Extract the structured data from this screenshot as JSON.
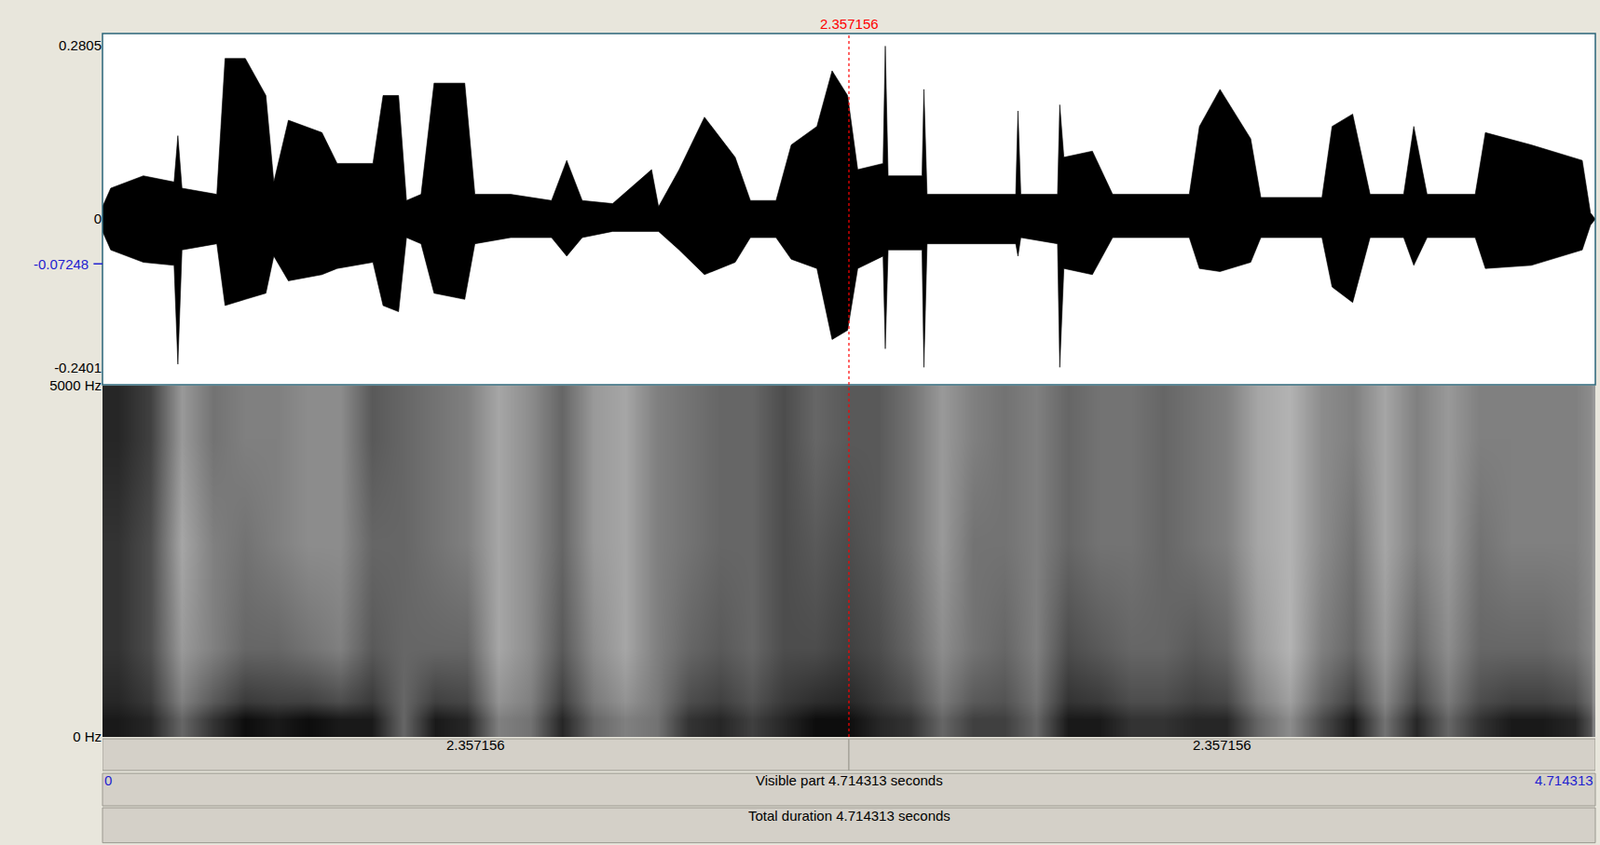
{
  "chart_data": [
    {
      "type": "waveform",
      "x": [
        0,
        0.026,
        0.129,
        0.226,
        0.238,
        0.251,
        0.361,
        0.387,
        0.451,
        0.516,
        0.541,
        0.587,
        0.693,
        0.741,
        0.854,
        0.886,
        0.935,
        0.96,
        1.006,
        1.047,
        1.144,
        1.176,
        1.289,
        1.418,
        1.466,
        1.515,
        1.611,
        1.734,
        1.756,
        1.821,
        1.901,
        1.998,
        2.046,
        2.127,
        2.175,
        2.256,
        2.304,
        2.353,
        2.385,
        2.465,
        2.472,
        2.481,
        2.588,
        2.594,
        2.604,
        2.884,
        2.891,
        2.9,
        3.016,
        3.023,
        3.036,
        3.126,
        3.19,
        3.432,
        3.464,
        3.529,
        3.626,
        3.658,
        3.851,
        3.883,
        3.948,
        4.003,
        4.109,
        4.141,
        4.183,
        4.335,
        4.367,
        4.512,
        4.673,
        4.699,
        4.714313
      ],
      "upper": [
        0.02,
        0.05,
        0.07,
        0.06,
        0.135,
        0.05,
        0.04,
        0.26,
        0.26,
        0.2,
        0.06,
        0.16,
        0.14,
        0.09,
        0.09,
        0.2,
        0.2,
        0.03,
        0.04,
        0.22,
        0.22,
        0.04,
        0.04,
        0.03,
        0.095,
        0.03,
        0.025,
        0.08,
        0.02,
        0.08,
        0.165,
        0.1,
        0.03,
        0.03,
        0.12,
        0.15,
        0.24,
        0.2,
        0.08,
        0.09,
        0.28,
        0.07,
        0.07,
        0.21,
        0.04,
        0.04,
        0.175,
        0.04,
        0.04,
        0.185,
        0.1,
        0.11,
        0.04,
        0.04,
        0.15,
        0.21,
        0.13,
        0.035,
        0.035,
        0.15,
        0.17,
        0.04,
        0.04,
        0.15,
        0.04,
        0.04,
        0.14,
        0.12,
        0.095,
        0.01,
        0
      ],
      "lower": [
        -0.02,
        -0.05,
        -0.07,
        -0.075,
        -0.235,
        -0.05,
        -0.04,
        -0.14,
        -0.13,
        -0.12,
        -0.06,
        -0.1,
        -0.09,
        -0.08,
        -0.07,
        -0.14,
        -0.15,
        -0.03,
        -0.04,
        -0.12,
        -0.13,
        -0.04,
        -0.03,
        -0.03,
        -0.06,
        -0.03,
        -0.02,
        -0.02,
        -0.02,
        -0.05,
        -0.09,
        -0.07,
        -0.03,
        -0.03,
        -0.065,
        -0.08,
        -0.195,
        -0.18,
        -0.08,
        -0.06,
        -0.21,
        -0.05,
        -0.05,
        -0.24,
        -0.04,
        -0.04,
        -0.06,
        -0.03,
        -0.04,
        -0.24,
        -0.08,
        -0.09,
        -0.03,
        -0.03,
        -0.08,
        -0.085,
        -0.07,
        -0.03,
        -0.03,
        -0.11,
        -0.135,
        -0.03,
        -0.03,
        -0.075,
        -0.03,
        -0.03,
        -0.08,
        -0.075,
        -0.05,
        -0.01,
        0
      ],
      "color": "#000000",
      "xlim": [
        0,
        4.714313
      ],
      "ylim": [
        -0.2682,
        0.3003
      ],
      "yticks": [
        0.2805,
        0,
        -0.2401
      ],
      "cursor_value": {
        "value": -0.07248,
        "color": "#1f1fd0"
      },
      "tick_labels": "y"
    },
    {
      "type": "heatmap",
      "time_edges": [
        0,
        0.1,
        0.2,
        0.3,
        0.4,
        0.5,
        0.6,
        0.7,
        0.8,
        0.9,
        1.0,
        1.1,
        1.2,
        1.3,
        1.4,
        1.5,
        1.6,
        1.7,
        1.8,
        1.9,
        2.0,
        2.1,
        2.2,
        2.3,
        2.4,
        2.5,
        2.6,
        2.7,
        2.8,
        2.9,
        3.0,
        3.1,
        3.2,
        3.3,
        3.4,
        3.5,
        3.6,
        3.7,
        3.8,
        3.9,
        4.0,
        4.1,
        4.2,
        4.3,
        4.4,
        4.5,
        4.6,
        4.7,
        4.714313
      ],
      "freq_edges": [
        0,
        500,
        2000,
        3500,
        5000
      ],
      "values": [
        [
          0.9,
          0.85,
          0.6,
          0.8,
          0.95,
          0.9,
          0.95,
          0.9,
          0.9,
          0.6,
          0.9,
          0.85,
          0.5,
          0.55,
          0.85,
          0.6,
          0.5,
          0.55,
          0.8,
          0.85,
          0.75,
          0.85,
          0.95,
          0.95,
          0.85,
          0.8,
          0.6,
          0.75,
          0.75,
          0.6,
          0.9,
          0.9,
          0.8,
          0.8,
          0.85,
          0.85,
          0.6,
          0.45,
          0.7,
          0.9,
          0.55,
          0.85,
          0.6,
          0.8,
          0.9,
          0.9,
          0.85,
          0.5
        ],
        [
          0.8,
          0.7,
          0.4,
          0.5,
          0.6,
          0.6,
          0.55,
          0.5,
          0.65,
          0.6,
          0.6,
          0.6,
          0.35,
          0.45,
          0.65,
          0.45,
          0.35,
          0.5,
          0.6,
          0.65,
          0.6,
          0.7,
          0.7,
          0.75,
          0.7,
          0.6,
          0.45,
          0.55,
          0.6,
          0.5,
          0.7,
          0.65,
          0.6,
          0.6,
          0.65,
          0.6,
          0.4,
          0.3,
          0.5,
          0.6,
          0.4,
          0.6,
          0.45,
          0.6,
          0.6,
          0.6,
          0.55,
          0.4
        ],
        [
          0.8,
          0.7,
          0.35,
          0.5,
          0.55,
          0.5,
          0.45,
          0.45,
          0.6,
          0.6,
          0.55,
          0.5,
          0.35,
          0.45,
          0.6,
          0.4,
          0.35,
          0.5,
          0.55,
          0.6,
          0.6,
          0.7,
          0.65,
          0.7,
          0.65,
          0.55,
          0.4,
          0.55,
          0.55,
          0.5,
          0.6,
          0.55,
          0.55,
          0.6,
          0.55,
          0.5,
          0.35,
          0.3,
          0.45,
          0.55,
          0.35,
          0.5,
          0.4,
          0.55,
          0.5,
          0.5,
          0.5,
          0.4
        ],
        [
          0.85,
          0.75,
          0.4,
          0.55,
          0.5,
          0.5,
          0.45,
          0.45,
          0.65,
          0.6,
          0.55,
          0.5,
          0.35,
          0.45,
          0.6,
          0.4,
          0.35,
          0.5,
          0.55,
          0.6,
          0.6,
          0.7,
          0.6,
          0.65,
          0.65,
          0.55,
          0.4,
          0.5,
          0.55,
          0.5,
          0.6,
          0.55,
          0.55,
          0.6,
          0.55,
          0.5,
          0.35,
          0.3,
          0.45,
          0.5,
          0.35,
          0.5,
          0.4,
          0.5,
          0.5,
          0.5,
          0.5,
          0.4
        ]
      ],
      "color_range": [
        0,
        1
      ],
      "xlim": [
        0,
        4.714313
      ],
      "ylim": [
        0,
        5000
      ],
      "yticks": [
        {
          "value": 5000,
          "label": "5000 Hz"
        },
        {
          "value": 0,
          "label": "0 Hz"
        }
      ],
      "tick_labels": "y"
    }
  ],
  "cursor": {
    "time": 2.357156,
    "color": "#ff0000"
  },
  "time_bar": {
    "segments": [
      2.357156,
      2.357156
    ],
    "visible": {
      "start": 0,
      "text": "Visible part 4.714313 seconds",
      "end": 4.714313,
      "color": "#1f1fd0"
    },
    "total": "Total duration 4.714313 seconds"
  }
}
